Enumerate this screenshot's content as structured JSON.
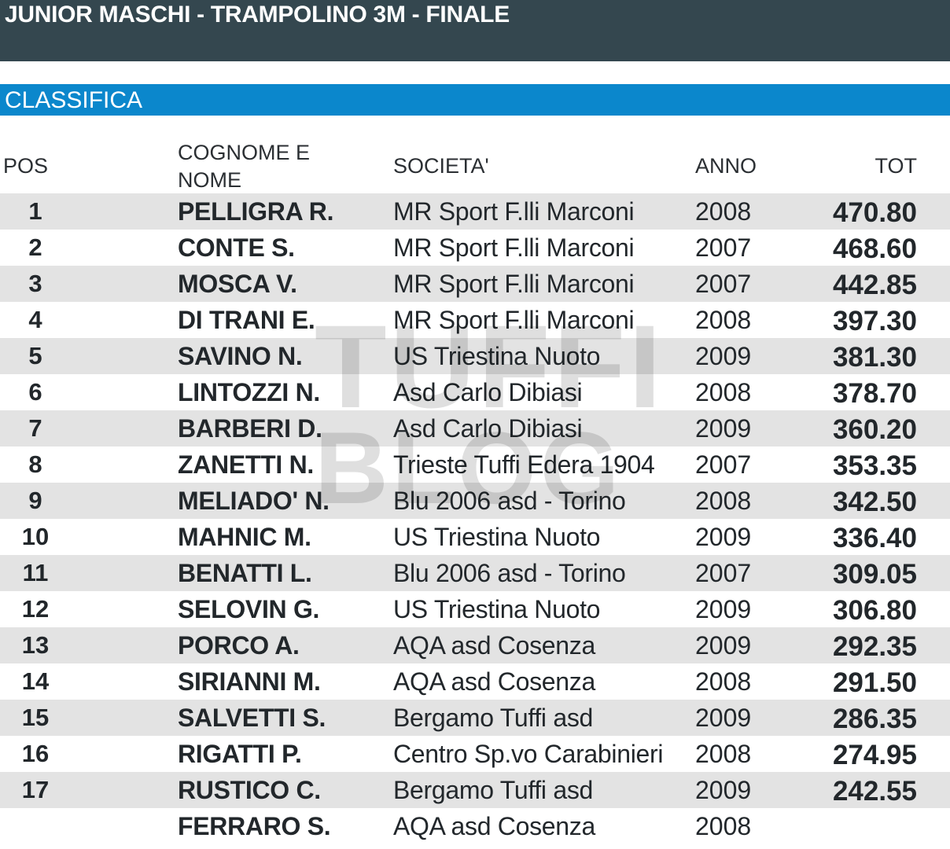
{
  "header": {
    "title": "JUNIOR MASCHI - TRAMPOLINO 3M - FINALE"
  },
  "section": {
    "title": "CLASSIFICA"
  },
  "columns": {
    "pos": "POS",
    "name_line1": "COGNOME E",
    "name_line2": "NOME",
    "societa": "SOCIETA'",
    "anno": "ANNO",
    "tot": "TOT"
  },
  "watermark": {
    "line1": "TUFFI",
    "line2": "BLOG",
    "icon": "tuffiblog-logo-icon"
  },
  "rows": [
    {
      "pos": "1",
      "name": "PELLIGRA R.",
      "societa": "MR Sport F.lli Marconi",
      "anno": "2008",
      "tot": "470.80"
    },
    {
      "pos": "2",
      "name": "CONTE S.",
      "societa": "MR Sport F.lli Marconi",
      "anno": "2007",
      "tot": "468.60"
    },
    {
      "pos": "3",
      "name": "MOSCA V.",
      "societa": "MR Sport F.lli Marconi",
      "anno": "2007",
      "tot": "442.85"
    },
    {
      "pos": "4",
      "name": "DI TRANI E.",
      "societa": "MR Sport F.lli Marconi",
      "anno": "2008",
      "tot": "397.30"
    },
    {
      "pos": "5",
      "name": "SAVINO N.",
      "societa": "US Triestina Nuoto",
      "anno": "2009",
      "tot": "381.30"
    },
    {
      "pos": "6",
      "name": "LINTOZZI N.",
      "societa": "Asd Carlo Dibiasi",
      "anno": "2008",
      "tot": "378.70"
    },
    {
      "pos": "7",
      "name": "BARBERI D.",
      "societa": "Asd Carlo Dibiasi",
      "anno": "2009",
      "tot": "360.20"
    },
    {
      "pos": "8",
      "name": "ZANETTI N.",
      "societa": "Trieste Tuffi Edera 1904",
      "anno": "2007",
      "tot": "353.35"
    },
    {
      "pos": "9",
      "name": "MELIADO' N.",
      "societa": "Blu 2006 asd - Torino",
      "anno": "2008",
      "tot": "342.50"
    },
    {
      "pos": "10",
      "name": "MAHNIC M.",
      "societa": "US Triestina Nuoto",
      "anno": "2009",
      "tot": "336.40"
    },
    {
      "pos": "11",
      "name": "BENATTI L.",
      "societa": "Blu 2006 asd - Torino",
      "anno": "2007",
      "tot": "309.05"
    },
    {
      "pos": "12",
      "name": "SELOVIN G.",
      "societa": "US Triestina Nuoto",
      "anno": "2009",
      "tot": "306.80"
    },
    {
      "pos": "13",
      "name": "PORCO A.",
      "societa": "AQA asd Cosenza",
      "anno": "2009",
      "tot": "292.35"
    },
    {
      "pos": "14",
      "name": "SIRIANNI M.",
      "societa": "AQA asd Cosenza",
      "anno": "2008",
      "tot": "291.50"
    },
    {
      "pos": "15",
      "name": "SALVETTI S.",
      "societa": "Bergamo Tuffi asd",
      "anno": "2009",
      "tot": "286.35"
    },
    {
      "pos": "16",
      "name": "RIGATTI P.",
      "societa": "Centro Sp.vo Carabinieri",
      "anno": "2008",
      "tot": "274.95"
    },
    {
      "pos": "17",
      "name": "RUSTICO C.",
      "societa": "Bergamo Tuffi asd",
      "anno": "2009",
      "tot": "242.55"
    },
    {
      "pos": "",
      "name": "FERRARO S.",
      "societa": "AQA asd Cosenza",
      "anno": "2008",
      "tot": ""
    }
  ]
}
